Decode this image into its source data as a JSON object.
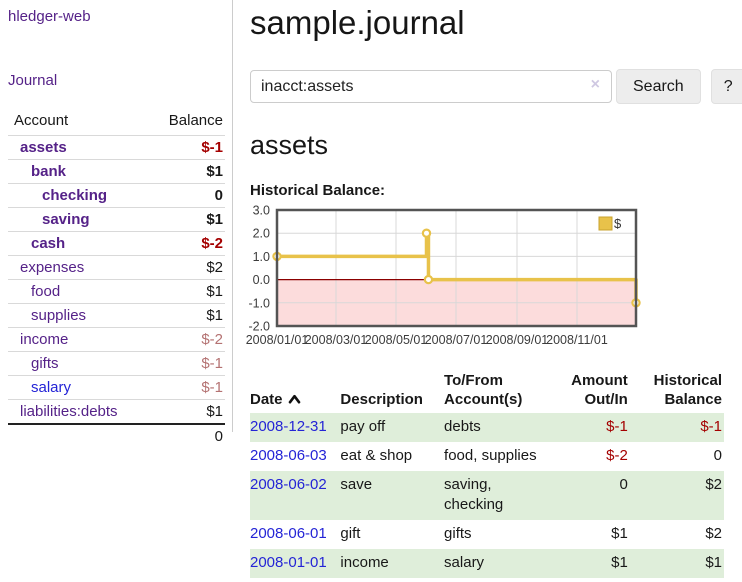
{
  "sidebar": {
    "brand": "hledger-web",
    "nav": {
      "journal": "Journal"
    },
    "accounts_table": {
      "headers": {
        "account": "Account",
        "balance": "Balance"
      },
      "rows": [
        {
          "name": "assets",
          "depth": 0,
          "bold": true,
          "balance": "$-1",
          "negative": "strong"
        },
        {
          "name": "bank",
          "depth": 1,
          "bold": true,
          "balance": "$1",
          "negative": "none"
        },
        {
          "name": "checking",
          "depth": 2,
          "bold": true,
          "balance": "0",
          "negative": "none"
        },
        {
          "name": "saving",
          "depth": 2,
          "bold": true,
          "balance": "$1",
          "negative": "none"
        },
        {
          "name": "cash",
          "depth": 1,
          "bold": true,
          "balance": "$-2",
          "negative": "strong"
        },
        {
          "name": "expenses",
          "depth": 0,
          "bold": false,
          "balance": "$2",
          "negative": "none"
        },
        {
          "name": "food",
          "depth": 1,
          "bold": false,
          "balance": "$1",
          "negative": "none"
        },
        {
          "name": "supplies",
          "depth": 1,
          "bold": false,
          "balance": "$1",
          "negative": "none"
        },
        {
          "name": "income",
          "depth": 0,
          "bold": false,
          "balance": "$-2",
          "negative": "muted"
        },
        {
          "name": "gifts",
          "depth": 1,
          "bold": false,
          "balance": "$-1",
          "negative": "muted"
        },
        {
          "name": "salary",
          "depth": 1,
          "bold": false,
          "balance": "$-1",
          "negative": "muted",
          "link_color": "blue"
        },
        {
          "name": "liabilities:debts",
          "depth": 0,
          "bold": false,
          "balance": "$1",
          "negative": "none"
        }
      ],
      "total": "0"
    }
  },
  "main": {
    "title": "sample.journal",
    "search": {
      "value": "inacct:assets",
      "clear_icon": "×",
      "button": "Search",
      "help_button": "?"
    },
    "account_heading": "assets",
    "chart_label": "Historical Balance:"
  },
  "chart_data": {
    "type": "line",
    "subtype": "step",
    "title": "Historical Balance:",
    "x_start": "2008-01-01",
    "x_end": "2008-12-31",
    "ylim": [
      -2,
      3
    ],
    "yticks": [
      {
        "value": 3,
        "label": "3.0"
      },
      {
        "value": 2,
        "label": "2.0"
      },
      {
        "value": 1,
        "label": "1.0"
      },
      {
        "value": 0,
        "label": "0.0"
      },
      {
        "value": -1,
        "label": "-1.0"
      },
      {
        "value": -2,
        "label": "-2.0"
      }
    ],
    "xticks": [
      {
        "date": "2008-01-01",
        "label": "2008/01/01"
      },
      {
        "date": "2008-03-01",
        "label": "2008/03/01"
      },
      {
        "date": "2008-05-01",
        "label": "2008/05/01"
      },
      {
        "date": "2008-07-01",
        "label": "2008/07/01"
      },
      {
        "date": "2008-09-01",
        "label": "2008/09/01"
      },
      {
        "date": "2008-11-01",
        "label": "2008/11/01"
      }
    ],
    "series": [
      {
        "name": "$",
        "color": "#e8c24a",
        "points": [
          {
            "date": "2008-01-01",
            "value": 1
          },
          {
            "date": "2008-06-01",
            "value": 2
          },
          {
            "date": "2008-06-03",
            "value": 0
          },
          {
            "date": "2008-12-31",
            "value": -1
          }
        ]
      }
    ],
    "legend_position": "top-right",
    "grid": true,
    "colors": {
      "grid": "#d8d8d8",
      "border": "#545454",
      "negative_fill": "#fcdcdc",
      "zero_line": "#8b0000",
      "legend_swatch_border": "#c9a32f"
    }
  },
  "register": {
    "headers": {
      "date": "Date",
      "description": "Description",
      "accounts": "To/From Account(s)",
      "amount": "Amount Out/In",
      "balance": "Historical Balance"
    },
    "sort": {
      "column": "date",
      "direction": "ascending"
    },
    "rows": [
      {
        "date": "2008-12-31",
        "description": "pay off",
        "accounts": "debts",
        "amount": "$-1",
        "amount_negative": true,
        "balance": "$-1",
        "balance_negative": true
      },
      {
        "date": "2008-06-03",
        "description": "eat & shop",
        "accounts": "food, supplies",
        "amount": "$-2",
        "amount_negative": true,
        "balance": "0",
        "balance_negative": false
      },
      {
        "date": "2008-06-02",
        "description": "save",
        "accounts": "saving, checking",
        "amount": "0",
        "amount_negative": false,
        "balance": "$2",
        "balance_negative": false
      },
      {
        "date": "2008-06-01",
        "description": "gift",
        "accounts": "gifts",
        "amount": "$1",
        "amount_negative": false,
        "balance": "$2",
        "balance_negative": false
      },
      {
        "date": "2008-01-01",
        "description": "income",
        "accounts": "salary",
        "amount": "$1",
        "amount_negative": false,
        "balance": "$1",
        "balance_negative": false
      }
    ]
  }
}
